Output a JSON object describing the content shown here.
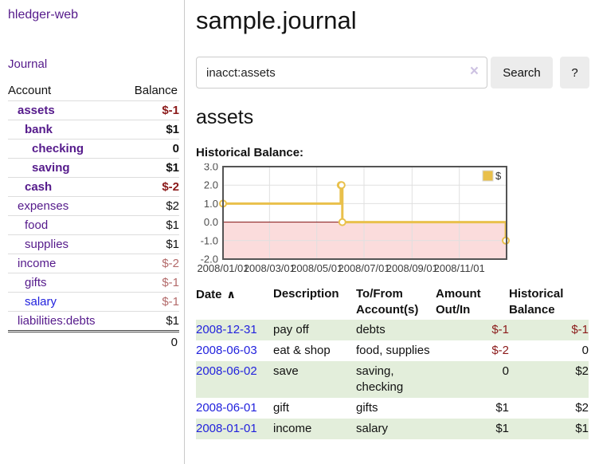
{
  "sidebar": {
    "app_title": "hledger-web",
    "journal_label": "Journal",
    "accounts": {
      "header_account": "Account",
      "header_balance": "Balance",
      "rows": [
        {
          "name": "assets",
          "balance": "$-1",
          "indent": 1,
          "bold": true,
          "neg": "strong"
        },
        {
          "name": "bank",
          "balance": "$1",
          "indent": 2,
          "bold": true,
          "neg": "none"
        },
        {
          "name": "checking",
          "balance": "0",
          "indent": 3,
          "bold": true,
          "neg": "none"
        },
        {
          "name": "saving",
          "balance": "$1",
          "indent": 3,
          "bold": true,
          "neg": "none"
        },
        {
          "name": "cash",
          "balance": "$-2",
          "indent": 2,
          "bold": true,
          "neg": "strong"
        },
        {
          "name": "expenses",
          "balance": "$2",
          "indent": 1,
          "bold": false,
          "neg": "none"
        },
        {
          "name": "food",
          "balance": "$1",
          "indent": 2,
          "bold": false,
          "neg": "none"
        },
        {
          "name": "supplies",
          "balance": "$1",
          "indent": 2,
          "bold": false,
          "neg": "none"
        },
        {
          "name": "income",
          "balance": "$-2",
          "indent": 1,
          "bold": false,
          "neg": "soft"
        },
        {
          "name": "gifts",
          "balance": "$-1",
          "indent": 2,
          "bold": false,
          "neg": "soft"
        },
        {
          "name": "salary",
          "balance": "$-1",
          "indent": 2,
          "bold": false,
          "neg": "soft",
          "link_color": "blue"
        },
        {
          "name": "liabilities:debts",
          "balance": "$1",
          "indent": 1,
          "bold": false,
          "neg": "none"
        }
      ],
      "total": "0"
    }
  },
  "main": {
    "page_title": "sample.journal",
    "search": {
      "value": "inacct:assets",
      "clear_icon": "×",
      "button_label": "Search",
      "help_label": "?"
    },
    "account_heading": "assets",
    "chart_heading": "Historical Balance:",
    "register": {
      "headers": {
        "date": "Date",
        "sort_icon": "∧",
        "description": "Description",
        "to_from": "To/From Account(s)",
        "amount": "Amount Out/In",
        "balance": "Historical Balance"
      },
      "rows": [
        {
          "date": "2008-12-31",
          "description": "pay off",
          "to_from": "debts",
          "amount": "$-1",
          "balance": "$-1",
          "amount_neg": true,
          "balance_neg": true
        },
        {
          "date": "2008-06-03",
          "description": "eat & shop",
          "to_from": "food, supplies",
          "amount": "$-2",
          "balance": "0",
          "amount_neg": true,
          "balance_neg": false
        },
        {
          "date": "2008-06-02",
          "description": "save",
          "to_from": "saving, checking",
          "amount": "0",
          "balance": "$2",
          "amount_neg": false,
          "balance_neg": false
        },
        {
          "date": "2008-06-01",
          "description": "gift",
          "to_from": "gifts",
          "amount": "$1",
          "balance": "$2",
          "amount_neg": false,
          "balance_neg": false
        },
        {
          "date": "2008-01-01",
          "description": "income",
          "to_from": "salary",
          "amount": "$1",
          "balance": "$1",
          "amount_neg": false,
          "balance_neg": false
        }
      ]
    }
  },
  "chart_data": {
    "type": "line",
    "title": "Historical Balance:",
    "legend": {
      "label": "$",
      "position": "top-right"
    },
    "series": [
      {
        "name": "$",
        "color": "#e9c04b",
        "steps": true,
        "points": [
          [
            "2008-01-01",
            1
          ],
          [
            "2008-06-01",
            2
          ],
          [
            "2008-06-02",
            2
          ],
          [
            "2008-06-03",
            0
          ],
          [
            "2008-12-31",
            -1
          ]
        ]
      }
    ],
    "xlim": [
      "2008-01-01",
      "2009-01-01"
    ],
    "ylim": [
      -2,
      3
    ],
    "y_ticks": [
      3,
      2,
      1,
      0,
      -1,
      -2
    ],
    "y_tick_labels": [
      "3.0",
      "2.0",
      "1.0",
      "0.0",
      "-1.0",
      "-2.0"
    ],
    "x_ticks": [
      "2008/01/01",
      "2008/03/01",
      "2008/05/01",
      "2008/07/01",
      "2008/09/01",
      "2008/11/01"
    ],
    "grid": true,
    "colors": {
      "negative_region": "#fbdcdc",
      "zero_line": "#7f0d0d",
      "gridline": "#e0e0e0",
      "border": "#545454",
      "tick_text": "#4d4d4d"
    }
  },
  "colors": {
    "link_purple": "#551a8b",
    "link_blue": "#2222dd",
    "negative_strong": "#8b1a1a",
    "negative_soft": "#b36a6a",
    "row_green": "#e3eedb",
    "button_bg": "#ececec",
    "accent_gold": "#e9c04b"
  }
}
